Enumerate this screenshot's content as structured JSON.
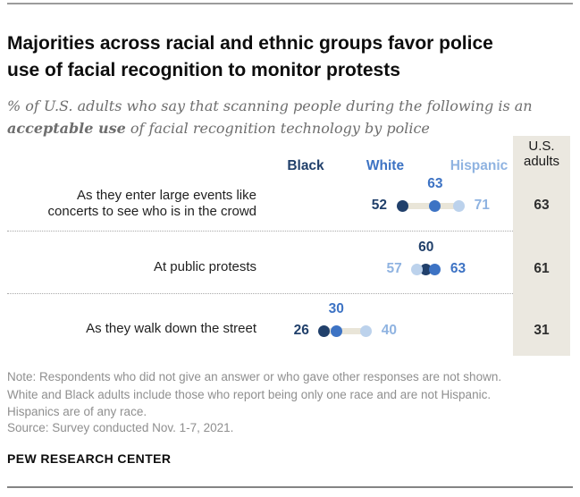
{
  "title_lines": [
    "Majorities across racial and ethnic groups favor police",
    "use of facial recognition to monitor protests"
  ],
  "subtitle": {
    "line1": "% of U.S. adults who say that scanning people during the following is an",
    "bold_phrase": "acceptable use",
    "line2_rest": " of facial recognition technology by police"
  },
  "us_column": {
    "header_line1": "U.S.",
    "header_line2": "adults"
  },
  "chart_data": {
    "type": "dot-plot",
    "x_unit": "percent",
    "groups": [
      {
        "id": "black",
        "name": "Black",
        "dot_color": "#21406b",
        "text_color": "#21406b"
      },
      {
        "id": "white",
        "name": "White",
        "dot_color": "#3d73c4",
        "text_color": "#3d73c4"
      },
      {
        "id": "hispanic",
        "name": "Hispanic",
        "dot_color": "#bcd2ec",
        "text_color": "#8fb3e1"
      }
    ],
    "connector_color": "#e9e5d8",
    "us_adults_column_color": "#ebe8e0",
    "rows": [
      {
        "category": "As they enter large events like concerts to see who is in the crowd",
        "category_lines": [
          "As they enter large events like",
          "concerts to see who is in the crowd"
        ],
        "points": [
          {
            "group": "black",
            "value": 52,
            "label_pos": "left"
          },
          {
            "group": "white",
            "value": 63,
            "label_pos": "above"
          },
          {
            "group": "hispanic",
            "value": 71,
            "label_pos": "right"
          }
        ],
        "us_adults": 63
      },
      {
        "category": "At public protests",
        "category_lines": [
          "At public protests"
        ],
        "points": [
          {
            "group": "hispanic",
            "value": 57,
            "label_pos": "left"
          },
          {
            "group": "black",
            "value": 60,
            "label_pos": "above"
          },
          {
            "group": "white",
            "value": 63,
            "label_pos": "right"
          }
        ],
        "us_adults": 61
      },
      {
        "category": "As they walk down the street",
        "category_lines": [
          "As they walk down the street"
        ],
        "points": [
          {
            "group": "black",
            "value": 26,
            "label_pos": "left"
          },
          {
            "group": "white",
            "value": 30,
            "label_pos": "above"
          },
          {
            "group": "hispanic",
            "value": 40,
            "label_pos": "right"
          }
        ],
        "us_adults": 31
      }
    ]
  },
  "notes": {
    "note_lines": [
      "Note: Respondents who did not give an answer or who gave other responses are not shown.",
      "White and Black adults include those who report being only one race and are not Hispanic.",
      "Hispanics are of any race."
    ],
    "source": "Source: Survey conducted Nov. 1-7, 2021."
  },
  "branding": "PEW RESEARCH CENTER"
}
